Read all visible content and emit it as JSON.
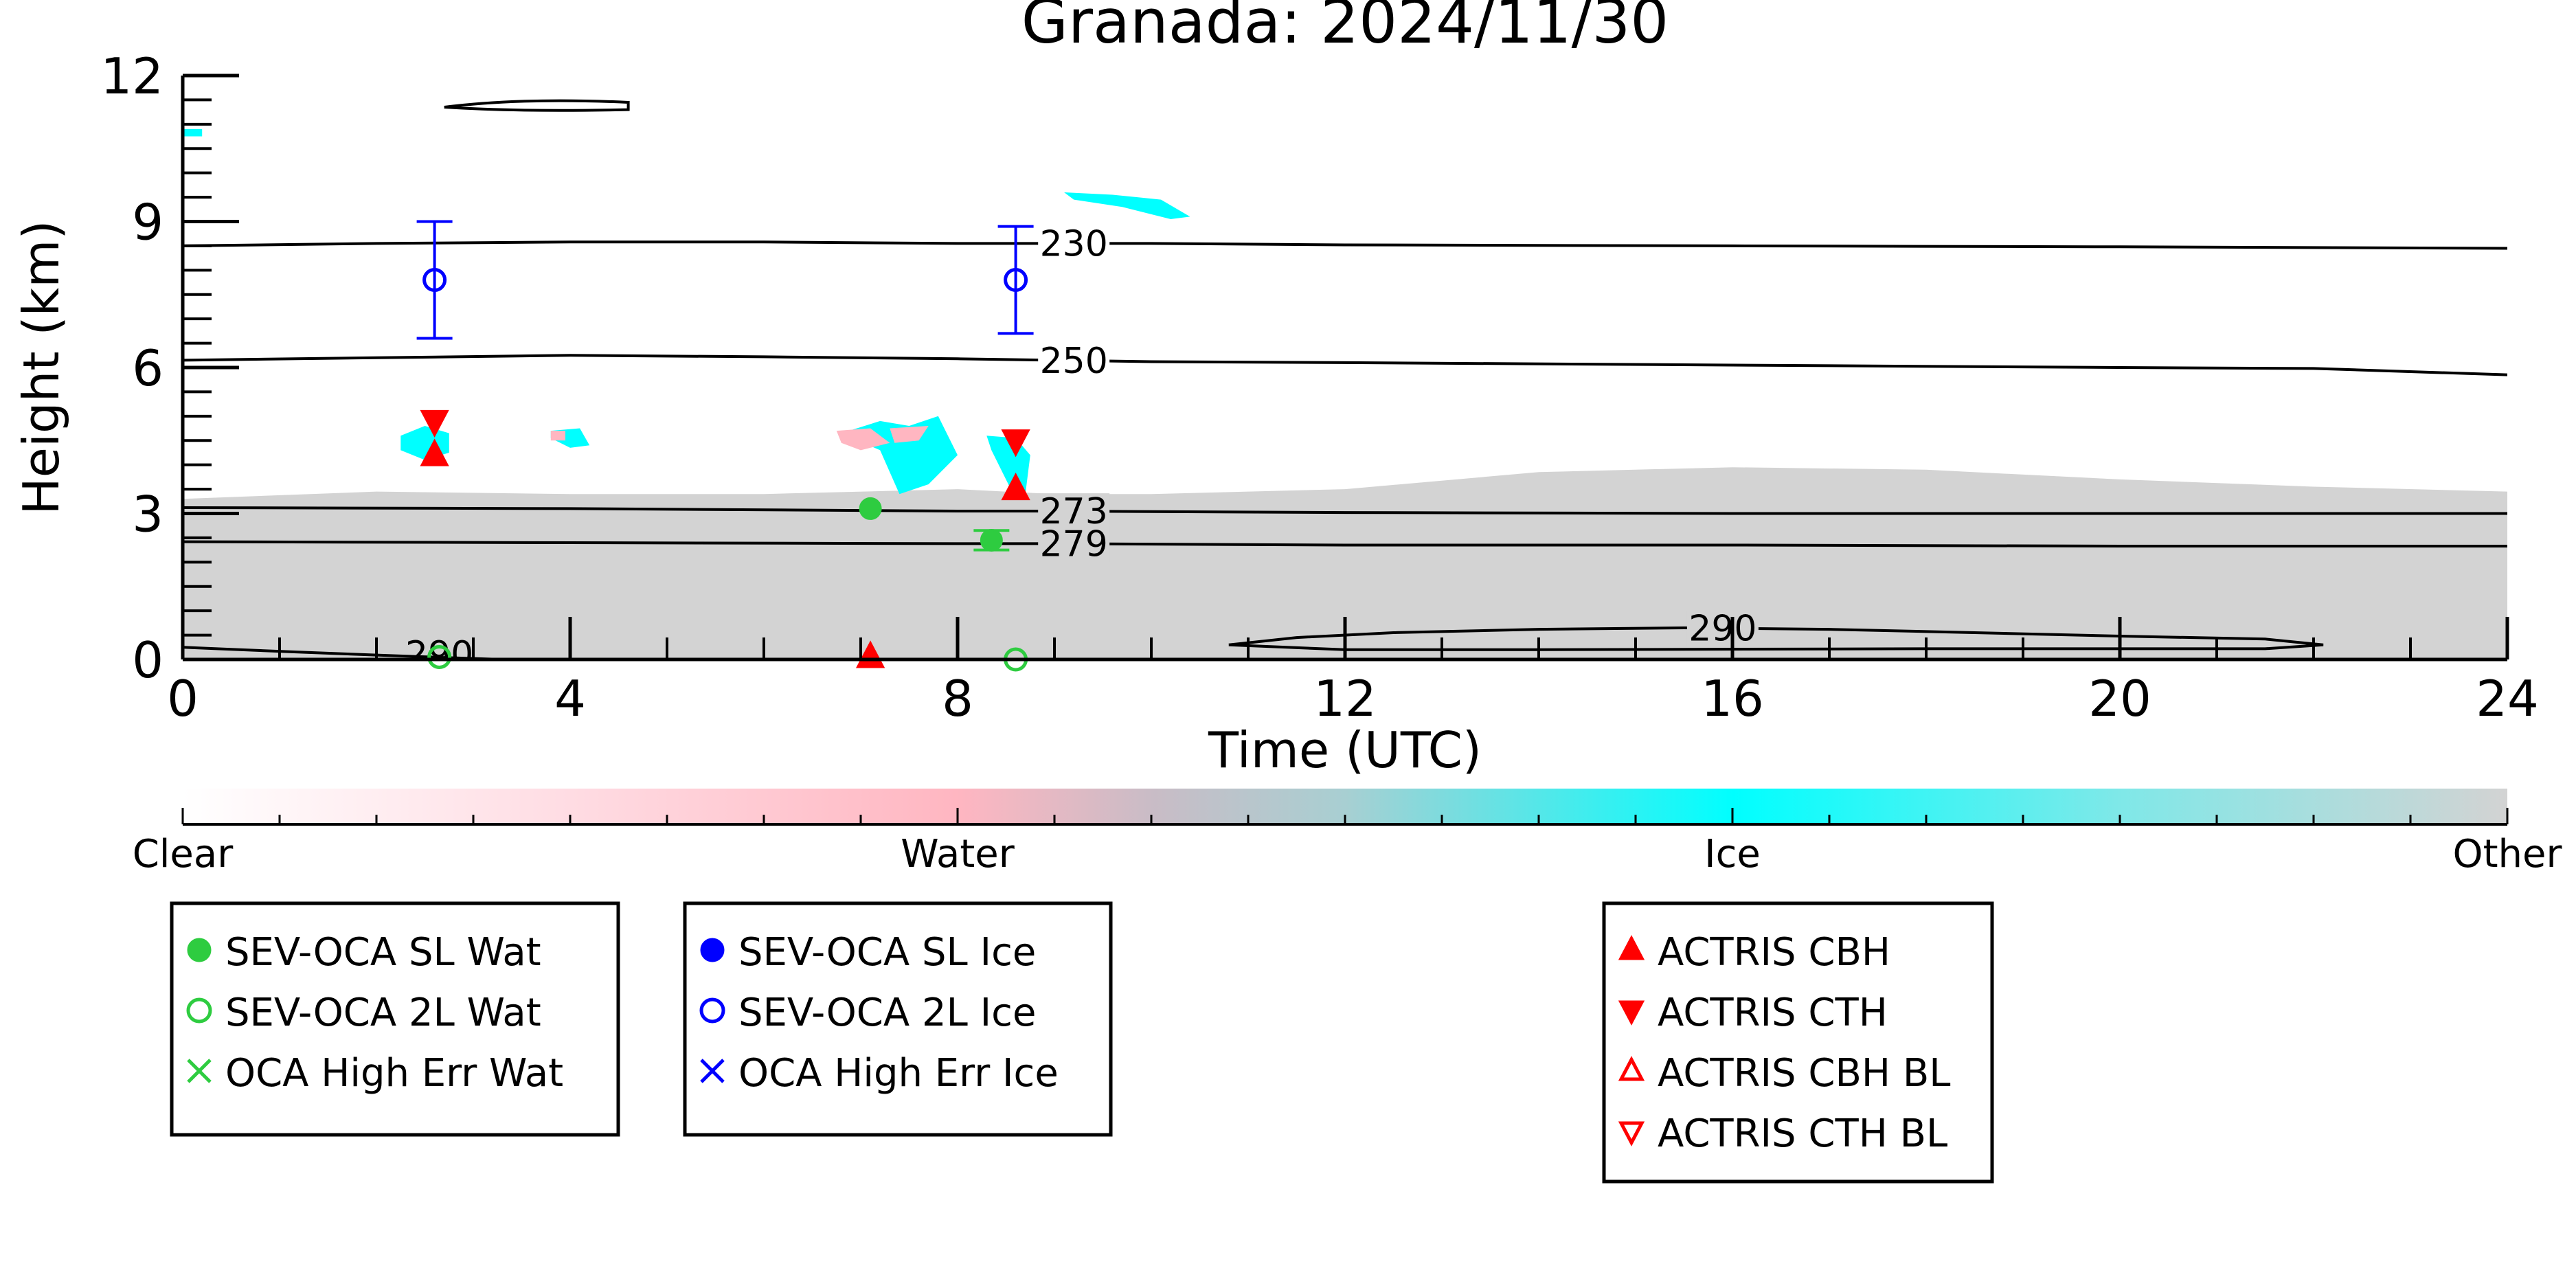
{
  "chart_data": {
    "type": "scatter",
    "title": "Granada: 2024/11/30",
    "xlabel": "Time (UTC)",
    "ylabel": "Height (km)",
    "xlim": [
      0,
      24
    ],
    "ylim": [
      0,
      12
    ],
    "xticks": [
      0,
      4,
      8,
      12,
      16,
      20,
      24
    ],
    "yticks": [
      0,
      3,
      6,
      9,
      12
    ],
    "grid": false,
    "colorbar": {
      "labels": [
        "Clear",
        "Water",
        "Ice",
        "Other"
      ],
      "colors": [
        "#ffffff",
        "#ffb6c1",
        "#00ffff",
        "#d3d3d3"
      ]
    },
    "temperature_contours": [
      {
        "label": "230",
        "x": [
          0,
          2,
          4,
          6,
          8,
          9,
          10,
          12,
          16,
          20,
          24
        ],
        "y": [
          8.5,
          8.55,
          8.58,
          8.58,
          8.55,
          8.55,
          8.55,
          8.52,
          8.5,
          8.48,
          8.45
        ],
        "label_x": 9.2
      },
      {
        "label": "250",
        "x": [
          0,
          2,
          4,
          6,
          8,
          9,
          10,
          12,
          16,
          20,
          22,
          24
        ],
        "y": [
          6.15,
          6.2,
          6.25,
          6.22,
          6.18,
          6.15,
          6.12,
          6.1,
          6.05,
          6.0,
          5.98,
          5.85
        ],
        "label_x": 9.2
      },
      {
        "label": "273",
        "x": [
          0,
          4,
          8,
          9,
          12,
          16,
          20,
          24
        ],
        "y": [
          3.12,
          3.1,
          3.05,
          3.05,
          3.02,
          3.0,
          3.0,
          3.0
        ],
        "label_x": 9.2
      },
      {
        "label": "279",
        "x": [
          0,
          4,
          8,
          9,
          12,
          16,
          20,
          24
        ],
        "y": [
          2.42,
          2.4,
          2.38,
          2.38,
          2.35,
          2.35,
          2.33,
          2.33
        ],
        "label_x": 9.2
      },
      {
        "label": "290",
        "x": [
          10.8,
          11.5,
          12.5,
          14,
          15.5,
          17,
          18.5,
          20,
          21.5,
          22.1,
          21.5,
          18,
          14,
          12,
          10.8
        ],
        "y": [
          0.3,
          0.45,
          0.55,
          0.62,
          0.65,
          0.62,
          0.55,
          0.48,
          0.42,
          0.3,
          0.22,
          0.22,
          0.2,
          0.2,
          0.3
        ],
        "label_x": 15.9
      }
    ],
    "contour_labels_extra": [
      "290"
    ],
    "series": [
      {
        "name": "SEV-OCA SL Wat",
        "marker": "filled-circle",
        "color": "#2ecc40",
        "points": [
          {
            "x": 7.1,
            "y": 3.1
          },
          {
            "x": 8.35,
            "y": 2.45,
            "err": 0.2
          }
        ]
      },
      {
        "name": "SEV-OCA 2L Wat",
        "marker": "open-circle",
        "color": "#2ecc40",
        "points": [
          {
            "x": 2.65,
            "y": 0.05
          },
          {
            "x": 8.6,
            "y": 0.0
          }
        ]
      },
      {
        "name": "OCA High Err Wat",
        "marker": "x",
        "color": "#2ecc40",
        "points": []
      },
      {
        "name": "SEV-OCA SL Ice",
        "marker": "filled-circle",
        "color": "#0000ff",
        "points": []
      },
      {
        "name": "SEV-OCA 2L Ice",
        "marker": "open-circle",
        "color": "#0000ff",
        "points": [
          {
            "x": 2.6,
            "y": 7.8,
            "err_low": 6.6,
            "err_high": 9.0
          },
          {
            "x": 8.6,
            "y": 7.8,
            "err_low": 6.7,
            "err_high": 8.9
          }
        ]
      },
      {
        "name": "OCA High Err Ice",
        "marker": "x",
        "color": "#0000ff",
        "points": []
      },
      {
        "name": "ACTRIS CBH",
        "marker": "filled-triangle-up",
        "color": "#ff0000",
        "points": [
          {
            "x": 2.6,
            "y": 4.2
          },
          {
            "x": 8.6,
            "y": 3.5
          },
          {
            "x": 7.1,
            "y": 0.05
          }
        ]
      },
      {
        "name": "ACTRIS CTH",
        "marker": "filled-triangle-down",
        "color": "#ff0000",
        "points": [
          {
            "x": 2.6,
            "y": 4.9
          },
          {
            "x": 8.6,
            "y": 4.5
          }
        ]
      },
      {
        "name": "ACTRIS CBH BL",
        "marker": "open-triangle-up",
        "color": "#ff0000",
        "points": []
      },
      {
        "name": "ACTRIS CTH BL",
        "marker": "open-triangle-down",
        "color": "#ff0000",
        "points": []
      }
    ],
    "legends": [
      {
        "items": [
          "SEV-OCA SL Wat",
          "SEV-OCA 2L Wat",
          "OCA High Err Wat"
        ]
      },
      {
        "items": [
          "SEV-OCA SL Ice",
          "SEV-OCA 2L Ice",
          "OCA High Err Ice"
        ]
      },
      {
        "items": [
          "ACTRIS CBH",
          "ACTRIS CTH",
          "ACTRIS CBH BL",
          "ACTRIS CTH BL"
        ]
      }
    ],
    "classification_regions": [
      {
        "class": "Other",
        "x": [
          0,
          2,
          4,
          6,
          8,
          9,
          10,
          12,
          14,
          16,
          18,
          20,
          22,
          24,
          24,
          0
        ],
        "y": [
          3.3,
          3.45,
          3.4,
          3.4,
          3.5,
          3.4,
          3.4,
          3.5,
          3.85,
          3.95,
          3.9,
          3.7,
          3.55,
          3.45,
          0,
          0
        ]
      },
      {
        "class": "Ice",
        "x": [
          2.25,
          2.5,
          2.75,
          2.75,
          2.5,
          2.25
        ],
        "y": [
          4.6,
          4.8,
          4.65,
          4.25,
          4.1,
          4.3
        ]
      },
      {
        "class": "Ice",
        "x": [
          3.8,
          4.1,
          4.2,
          4.0,
          3.8
        ],
        "y": [
          4.7,
          4.75,
          4.4,
          4.35,
          4.55
        ]
      },
      {
        "class": "Ice",
        "x": [
          6.8,
          7.2,
          7.5,
          7.8,
          8.0,
          7.7,
          7.4,
          7.2
        ],
        "y": [
          4.65,
          4.9,
          4.8,
          5.0,
          4.2,
          3.6,
          3.4,
          4.3
        ]
      },
      {
        "class": "Ice",
        "x": [
          8.3,
          8.6,
          8.75,
          8.7,
          8.55,
          8.35
        ],
        "y": [
          4.6,
          4.55,
          4.2,
          3.4,
          3.5,
          4.3
        ]
      },
      {
        "class": "Ice",
        "x": [
          9.1,
          9.6,
          10.1,
          10.4,
          10.2,
          9.7,
          9.2
        ],
        "y": [
          9.6,
          9.55,
          9.45,
          9.1,
          9.05,
          9.3,
          9.45
        ]
      },
      {
        "class": "Ice",
        "x": [
          0.0,
          0.2,
          0.2,
          0.0
        ],
        "y": [
          10.9,
          10.9,
          10.75,
          10.75
        ]
      },
      {
        "class": "Water",
        "x": [
          6.75,
          7.1,
          7.3,
          7.0,
          6.8
        ],
        "y": [
          4.7,
          4.75,
          4.45,
          4.3,
          4.45
        ]
      },
      {
        "class": "Water",
        "x": [
          7.3,
          7.7,
          7.6,
          7.35
        ],
        "y": [
          4.75,
          4.8,
          4.5,
          4.45
        ]
      },
      {
        "class": "Water",
        "x": [
          3.8,
          3.95,
          3.95,
          3.8
        ],
        "y": [
          4.7,
          4.7,
          4.5,
          4.5
        ]
      }
    ]
  }
}
